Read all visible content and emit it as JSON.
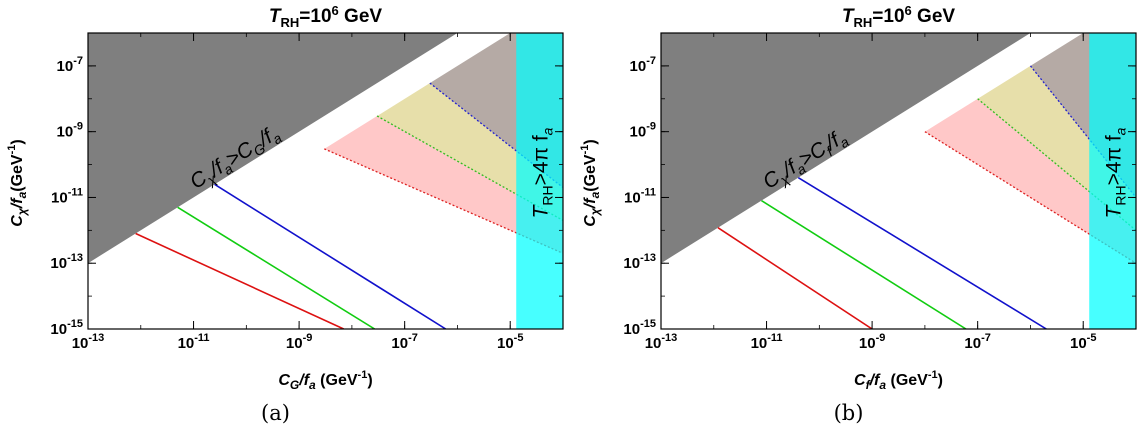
{
  "chart_data": [
    {
      "type": "line",
      "panel_label": "(a)",
      "title": {
        "base": "T",
        "sub": "RH",
        "mid": "=10",
        "sup": "6",
        "end": " GeV"
      },
      "xlabel": {
        "base": "C",
        "sub": "G",
        "rest": "/f",
        "sub2": "a",
        "end": " (GeV",
        "sup": "-1",
        "close": ")"
      },
      "ylabel": {
        "base": "C",
        "sub": "χ",
        "rest": "/f",
        "sub2": "a",
        "end": "(GeV",
        "sup": "-1",
        "close": ")"
      },
      "x_scale": "log",
      "y_scale": "log",
      "xlim": [
        1e-13,
        0.0001
      ],
      "ylim": [
        1e-15,
        1e-06
      ],
      "xticks": [
        {
          "v": 1e-13,
          "base": "10",
          "exp": "-13"
        },
        {
          "v": 1e-11,
          "base": "10",
          "exp": "-11"
        },
        {
          "v": 1e-09,
          "base": "10",
          "exp": "-9"
        },
        {
          "v": 1e-07,
          "base": "10",
          "exp": "-7"
        },
        {
          "v": 1e-05,
          "base": "10",
          "exp": "-5"
        }
      ],
      "yticks": [
        {
          "v": 1e-15,
          "base": "10",
          "exp": "-15"
        },
        {
          "v": 1e-13,
          "base": "10",
          "exp": "-13"
        },
        {
          "v": 1e-11,
          "base": "10",
          "exp": "-11"
        },
        {
          "v": 1e-09,
          "base": "10",
          "exp": "-9"
        },
        {
          "v": 1e-07,
          "base": "10",
          "exp": "-7"
        }
      ],
      "exclusion_wedge": {
        "color": "#7f7f7f",
        "boundary": "y = x",
        "label": {
          "p1": "C",
          "s1": "χ",
          "p2": "/f",
          "s2": "a",
          "p3": ">C",
          "s3": "G",
          "p4": "/f",
          "s4": "a"
        }
      },
      "bands": [
        {
          "color": "#ffc8c8",
          "lower": [
            [
              3e-09,
              3e-10
            ],
            [
              0.0001,
              2e-13
            ]
          ],
          "upper": [
            [
              3e-08,
              3e-09
            ],
            [
              0.0001,
              2e-12
            ]
          ]
        },
        {
          "color": "#e7dfaa",
          "lower": [
            [
              3e-08,
              3e-09
            ],
            [
              0.0001,
              2e-12
            ]
          ],
          "upper": [
            [
              3e-07,
              3e-08
            ],
            [
              0.0001,
              2e-11
            ]
          ]
        },
        {
          "color": "#b5aaa5",
          "lower": [
            [
              3e-07,
              3e-08
            ],
            [
              0.0001,
              2e-11
            ]
          ],
          "upper": [
            [
              1e-05,
              1e-06
            ],
            [
              0.0001,
              1e-06
            ]
          ]
        }
      ],
      "dotted_lines": [
        {
          "color": "#dd2222",
          "points": [
            [
              3e-09,
              3e-10
            ],
            [
              0.0001,
              2e-13
            ]
          ]
        },
        {
          "color": "#33bb22",
          "points": [
            [
              3e-08,
              3e-09
            ],
            [
              0.0001,
              2e-12
            ]
          ]
        },
        {
          "color": "#2222cc",
          "points": [
            [
              3e-07,
              3e-08
            ],
            [
              0.0001,
              2e-11
            ]
          ]
        }
      ],
      "series": [
        {
          "color": "#dd1111",
          "points": [
            [
              8e-13,
              8e-13
            ],
            [
              7e-09,
              1e-15
            ]
          ]
        },
        {
          "color": "#11cc11",
          "points": [
            [
              5e-12,
              5e-12
            ],
            [
              2.7e-08,
              1e-15
            ]
          ]
        },
        {
          "color": "#1111cc",
          "points": [
            [
              2.5e-11,
              2.5e-11
            ],
            [
              6e-07,
              1e-15
            ]
          ]
        }
      ],
      "vertical_band": {
        "x_from": 1.3e-05,
        "color": "#00ffff",
        "opacity": 0.72,
        "label": {
          "p1": "T",
          "s1": "RH",
          "p2": ">4π f",
          "s2": "a"
        }
      }
    },
    {
      "type": "line",
      "panel_label": "(b)",
      "title": {
        "base": "T",
        "sub": "RH",
        "mid": "=10",
        "sup": "6",
        "end": " GeV"
      },
      "xlabel": {
        "base": "C",
        "sub": "f",
        "rest": "/f",
        "sub2": "a",
        "end": " (GeV",
        "sup": "-1",
        "close": ")"
      },
      "ylabel": {
        "base": "C",
        "sub": "χ",
        "rest": "/f",
        "sub2": "a",
        "end": "(GeV",
        "sup": "-1",
        "close": ")"
      },
      "x_scale": "log",
      "y_scale": "log",
      "xlim": [
        1e-13,
        0.0001
      ],
      "ylim": [
        1e-15,
        1e-06
      ],
      "xticks": [
        {
          "v": 1e-13,
          "base": "10",
          "exp": "-13"
        },
        {
          "v": 1e-11,
          "base": "10",
          "exp": "-11"
        },
        {
          "v": 1e-09,
          "base": "10",
          "exp": "-9"
        },
        {
          "v": 1e-07,
          "base": "10",
          "exp": "-7"
        },
        {
          "v": 1e-05,
          "base": "10",
          "exp": "-5"
        }
      ],
      "yticks": [
        {
          "v": 1e-15,
          "base": "10",
          "exp": "-15"
        },
        {
          "v": 1e-13,
          "base": "10",
          "exp": "-13"
        },
        {
          "v": 1e-11,
          "base": "10",
          "exp": "-11"
        },
        {
          "v": 1e-09,
          "base": "10",
          "exp": "-9"
        },
        {
          "v": 1e-07,
          "base": "10",
          "exp": "-7"
        }
      ],
      "exclusion_wedge": {
        "color": "#7f7f7f",
        "boundary": "y = x",
        "label": {
          "p1": "C",
          "s1": "χ",
          "p2": "/f",
          "s2": "a",
          "p3": ">C",
          "s3": "f",
          "p4": "/f",
          "s4": "a"
        }
      },
      "bands": [
        {
          "color": "#ffc8c8",
          "lower": [
            [
              1e-08,
              1e-09
            ],
            [
              0.0001,
              1e-13
            ]
          ],
          "upper": [
            [
              1e-07,
              1e-08
            ],
            [
              0.0001,
              1e-12
            ]
          ]
        },
        {
          "color": "#e7dfaa",
          "lower": [
            [
              1e-07,
              1e-08
            ],
            [
              0.0001,
              1e-12
            ]
          ],
          "upper": [
            [
              1e-06,
              1e-07
            ],
            [
              0.0001,
              1e-11
            ]
          ]
        },
        {
          "color": "#b5aaa5",
          "lower": [
            [
              1e-06,
              1e-07
            ],
            [
              0.0001,
              1e-11
            ]
          ],
          "upper": [
            [
              1e-05,
              1e-06
            ],
            [
              0.0001,
              1e-06
            ]
          ]
        }
      ],
      "dotted_lines": [
        {
          "color": "#dd2222",
          "points": [
            [
              1e-08,
              1e-09
            ],
            [
              0.0001,
              1e-13
            ]
          ]
        },
        {
          "color": "#33bb22",
          "points": [
            [
              1e-07,
              1e-08
            ],
            [
              0.0001,
              1e-12
            ]
          ]
        },
        {
          "color": "#2222cc",
          "points": [
            [
              1e-06,
              1e-07
            ],
            [
              0.0001,
              1e-11
            ]
          ]
        }
      ],
      "series": [
        {
          "color": "#dd1111",
          "points": [
            [
              1.2e-12,
              1.2e-12
            ],
            [
              1e-09,
              1e-15
            ]
          ]
        },
        {
          "color": "#11cc11",
          "points": [
            [
              8e-12,
              8e-12
            ],
            [
              6e-08,
              1e-15
            ]
          ]
        },
        {
          "color": "#1111cc",
          "points": [
            [
              4e-11,
              4e-11
            ],
            [
              2e-06,
              1e-15
            ]
          ]
        }
      ],
      "vertical_band": {
        "x_from": 1.3e-05,
        "color": "#00ffff",
        "opacity": 0.72,
        "label": {
          "p1": "T",
          "s1": "RH",
          "p2": ">4π f",
          "s2": "a"
        }
      }
    }
  ]
}
